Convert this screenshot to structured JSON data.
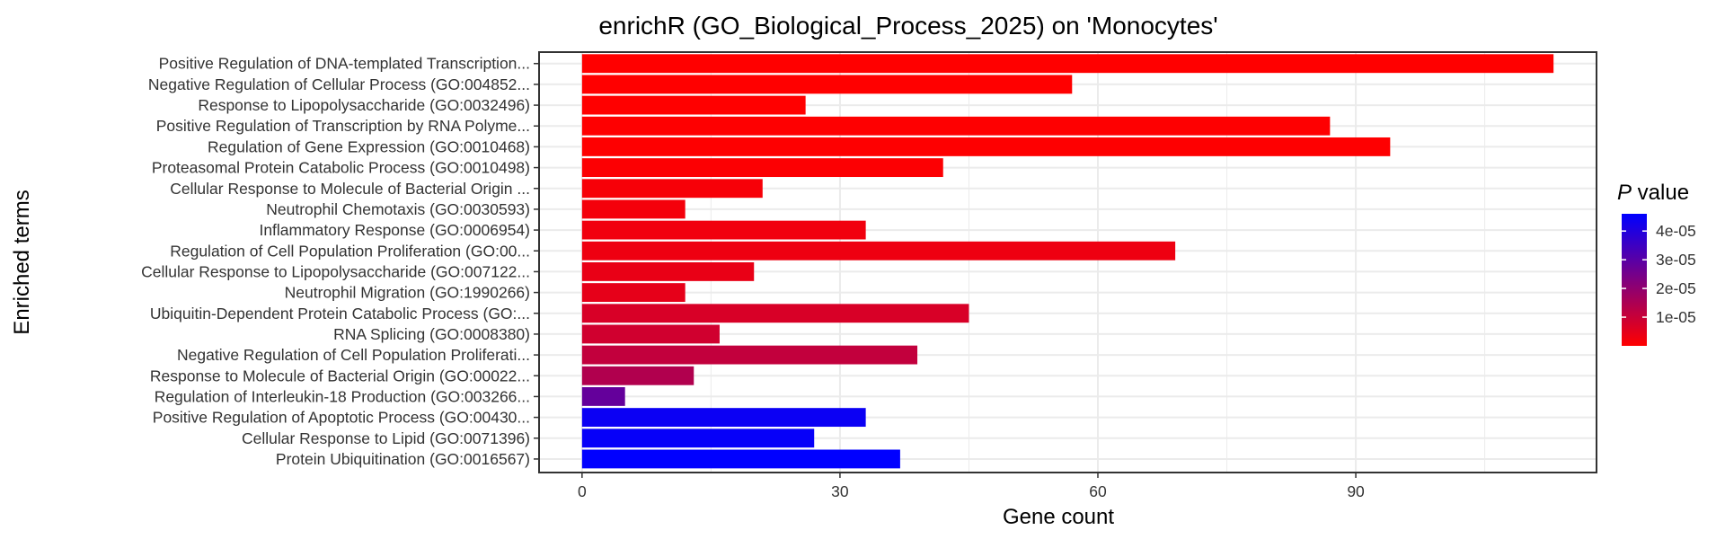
{
  "chart_data": {
    "type": "bar",
    "orientation": "horizontal",
    "title": "enrichR (GO_Biological_Process_2025) on 'Monocytes'",
    "xlabel": "Gene count",
    "ylabel": "Enriched terms",
    "xlim": [
      -5,
      118
    ],
    "xticks": [
      0,
      30,
      60,
      90
    ],
    "grid": true,
    "legend": {
      "title_italic": "P",
      "title_rest": " value",
      "placement": "right",
      "min": 0,
      "max": 4.6e-05,
      "ticks": [
        {
          "value": 1e-05,
          "label": "1e-05"
        },
        {
          "value": 2e-05,
          "label": "2e-05"
        },
        {
          "value": 3e-05,
          "label": "3e-05"
        },
        {
          "value": 4e-05,
          "label": "4e-05"
        }
      ],
      "color_low": "#ff0000",
      "color_high": "#0000ff"
    },
    "categories": [
      "Positive Regulation of DNA-templated Transcription...",
      "Negative Regulation of Cellular Process (GO:004852...",
      "Response to Lipopolysaccharide (GO:0032496)",
      "Positive Regulation of Transcription by RNA Polyme...",
      "Regulation of Gene Expression (GO:0010468)",
      "Proteasomal Protein Catabolic Process (GO:0010498)",
      "Cellular Response to Molecule of Bacterial Origin ...",
      "Neutrophil Chemotaxis (GO:0030593)",
      "Inflammatory Response (GO:0006954)",
      "Regulation of Cell Population Proliferation (GO:00...",
      "Cellular Response to Lipopolysaccharide (GO:007122...",
      "Neutrophil Migration (GO:1990266)",
      "Ubiquitin-Dependent Protein Catabolic Process (GO:...",
      "RNA Splicing (GO:0008380)",
      "Negative Regulation of Cell Population Proliferati...",
      "Response to Molecule of Bacterial Origin (GO:00022...",
      "Regulation of Interleukin-18 Production (GO:003266...",
      "Positive Regulation of Apoptotic Process (GO:00430...",
      "Cellular Response to Lipid (GO:0071396)",
      "Protein Ubiquitination (GO:0016567)"
    ],
    "values": [
      113,
      57,
      26,
      87,
      94,
      42,
      21,
      12,
      33,
      69,
      20,
      12,
      45,
      16,
      39,
      13,
      5,
      33,
      27,
      37
    ],
    "p_values": [
      1e-08,
      2e-08,
      5e-08,
      1e-07,
      2e-07,
      6e-07,
      1.5e-06,
      2e-06,
      2.5e-06,
      3e-06,
      4e-06,
      4.5e-06,
      7e-06,
      8.5e-06,
      1.1e-05,
      1.4e-05,
      2.8e-05,
      4.4e-05,
      4.5e-05,
      4.6e-05
    ]
  }
}
